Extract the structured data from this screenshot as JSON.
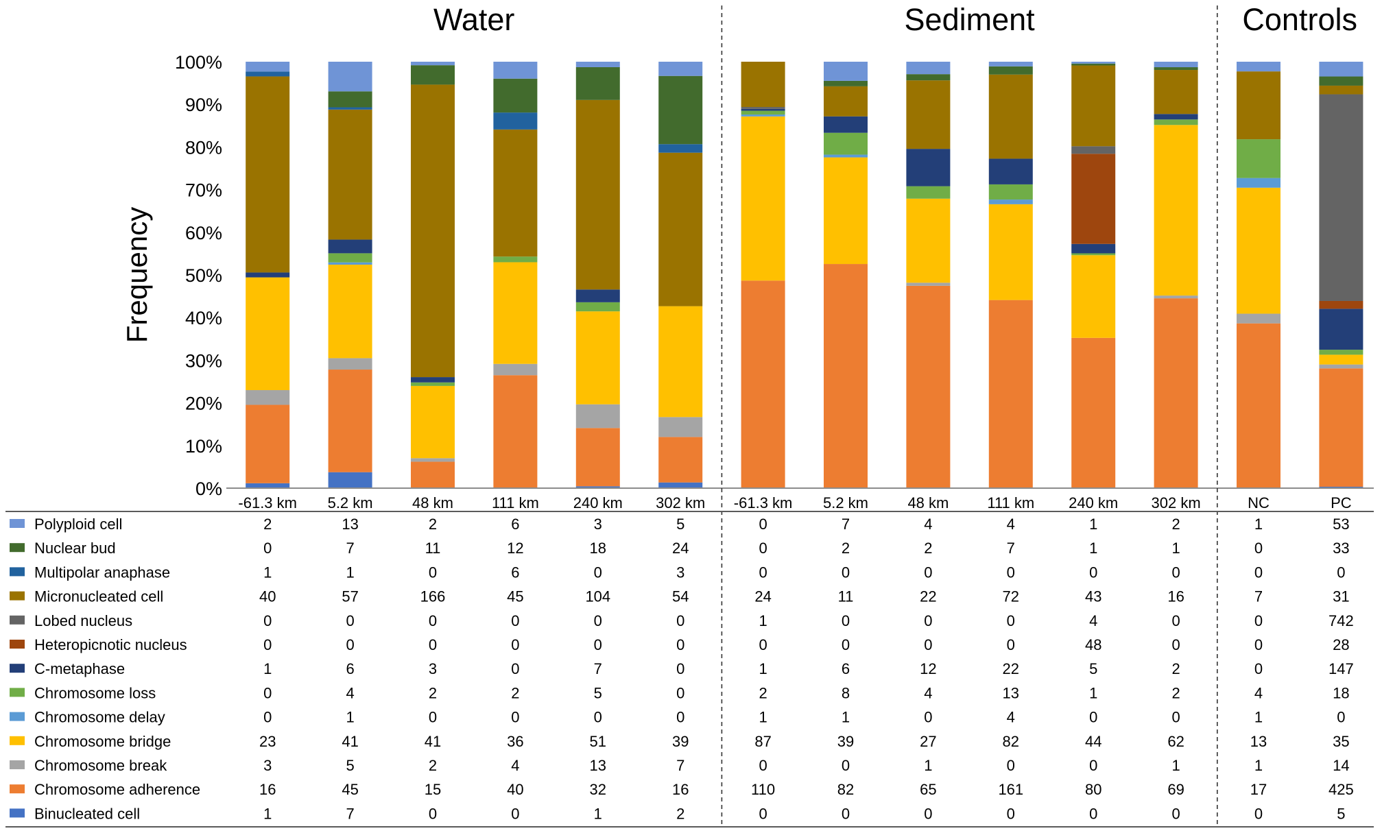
{
  "chart_data": {
    "type": "bar",
    "stacked": "percent",
    "groups": [
      {
        "title": "Water",
        "categories": [
          "-61.3 km",
          "5.2 km",
          "48 km",
          "111 km",
          "240 km",
          "302 km"
        ]
      },
      {
        "title": "Sediment",
        "categories": [
          "-61.3 km",
          "5.2 km",
          "48 km",
          "111 km",
          "240 km",
          "302 km"
        ]
      },
      {
        "title": "Controls",
        "categories": [
          "NC",
          "PC"
        ]
      }
    ],
    "categories": [
      "-61.3 km",
      "5.2 km",
      "48 km",
      "111 km",
      "240 km",
      "302 km",
      "-61.3 km",
      "5.2 km",
      "48 km",
      "111 km",
      "240 km",
      "302 km",
      "NC",
      "PC"
    ],
    "ylabel": "Frequency",
    "ylim": [
      0,
      100
    ],
    "yticks": [
      "0%",
      "10%",
      "20%",
      "30%",
      "40%",
      "50%",
      "60%",
      "70%",
      "80%",
      "90%",
      "100%"
    ],
    "series": [
      {
        "name": "Polyploid cell",
        "color": "#6f94d6",
        "values": [
          2,
          13,
          2,
          6,
          3,
          5,
          0,
          7,
          4,
          4,
          1,
          2,
          1,
          53
        ]
      },
      {
        "name": "Nuclear bud",
        "color": "#426b2d",
        "values": [
          0,
          7,
          11,
          12,
          18,
          24,
          0,
          2,
          2,
          7,
          1,
          1,
          0,
          33
        ]
      },
      {
        "name": "Multipolar anaphase",
        "color": "#21629e",
        "values": [
          1,
          1,
          0,
          6,
          0,
          3,
          0,
          0,
          0,
          0,
          0,
          0,
          0,
          0
        ]
      },
      {
        "name": "Micronucleated cell",
        "color": "#9a7300",
        "values": [
          40,
          57,
          166,
          45,
          104,
          54,
          24,
          11,
          22,
          72,
          43,
          16,
          7,
          31
        ]
      },
      {
        "name": "Lobed nucleus",
        "color": "#646464",
        "values": [
          0,
          0,
          0,
          0,
          0,
          0,
          1,
          0,
          0,
          0,
          4,
          0,
          0,
          742
        ]
      },
      {
        "name": "Heteropicnotic nucleus",
        "color": "#9e460e",
        "values": [
          0,
          0,
          0,
          0,
          0,
          0,
          0,
          0,
          0,
          0,
          48,
          0,
          0,
          28
        ]
      },
      {
        "name": "C-metaphase",
        "color": "#233f78",
        "values": [
          1,
          6,
          3,
          0,
          7,
          0,
          1,
          6,
          12,
          22,
          5,
          2,
          0,
          147
        ]
      },
      {
        "name": "Chromosome loss",
        "color": "#70ad47",
        "values": [
          0,
          4,
          2,
          2,
          5,
          0,
          2,
          8,
          4,
          13,
          1,
          2,
          4,
          18
        ]
      },
      {
        "name": "Chromosome delay",
        "color": "#5b9bd5",
        "values": [
          0,
          1,
          0,
          0,
          0,
          0,
          1,
          1,
          0,
          4,
          0,
          0,
          1,
          0
        ]
      },
      {
        "name": "Chromosome bridge",
        "color": "#ffc000",
        "values": [
          23,
          41,
          41,
          36,
          51,
          39,
          87,
          39,
          27,
          82,
          44,
          62,
          13,
          35
        ]
      },
      {
        "name": "Chromosome break",
        "color": "#a5a5a5",
        "values": [
          3,
          5,
          2,
          4,
          13,
          7,
          0,
          0,
          1,
          0,
          0,
          1,
          1,
          14
        ]
      },
      {
        "name": "Chromosome adherence",
        "color": "#ed7d31",
        "values": [
          16,
          45,
          15,
          40,
          32,
          16,
          110,
          82,
          65,
          161,
          80,
          69,
          17,
          425
        ]
      },
      {
        "name": "Binucleated cell",
        "color": "#4472c4",
        "values": [
          1,
          7,
          0,
          0,
          1,
          2,
          0,
          0,
          0,
          0,
          0,
          0,
          0,
          5
        ]
      }
    ]
  }
}
